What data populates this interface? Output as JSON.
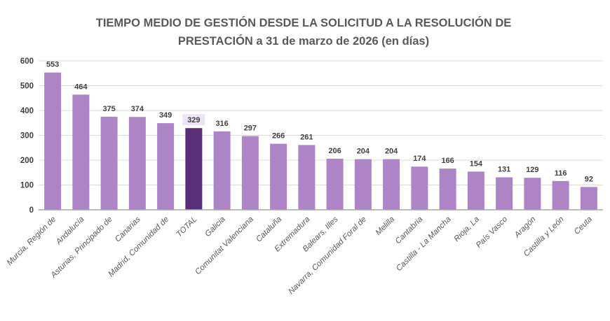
{
  "chart_data": {
    "type": "bar",
    "title": [
      "TIEMPO MEDIO DE GESTIÓN DESDE LA SOLICITUD A LA RESOLUCIÓN DE",
      "PRESTACIÓN a 31 de marzo de 2026 (en días)"
    ],
    "xlabel": "",
    "ylabel": "",
    "ylim": [
      0,
      600
    ],
    "yticks": [
      0,
      100,
      200,
      300,
      400,
      500,
      600
    ],
    "grid": true,
    "legend": "none",
    "categories": [
      "Murcia, Región de",
      "Andalucía",
      "Asturias, Principado de",
      "Canarias",
      "Madrid, Comunidad de",
      "TOTAL",
      "Galicia",
      "Comunitat Valenciana",
      "Cataluña",
      "Extremadura",
      "Balears, Illes",
      "Navarra, Comunidad Foral de",
      "Melilla",
      "Cantabria",
      "Castilla - La Mancha",
      "Rioja, La",
      "País Vasco",
      "Aragón",
      "Castilla y León",
      "Ceuta"
    ],
    "values": [
      553,
      464,
      375,
      374,
      349,
      329,
      316,
      297,
      266,
      261,
      206,
      204,
      204,
      174,
      166,
      154,
      131,
      129,
      116,
      92
    ],
    "data_labels": [
      "553",
      "464",
      "375",
      "374",
      "349",
      "329",
      "316",
      "297",
      "266",
      "261",
      "206",
      "204",
      "204",
      "174",
      "166",
      "154",
      "131",
      "129",
      "116",
      "92"
    ],
    "highlight_category": "TOTAL",
    "colors": {
      "bar": "#ad85c6",
      "highlight": "#5a2f7a",
      "highlight_label_bg": "#ece3f3",
      "grid": "#d9d9d9",
      "axis": "#a6a6a6",
      "title": "#595959"
    }
  }
}
